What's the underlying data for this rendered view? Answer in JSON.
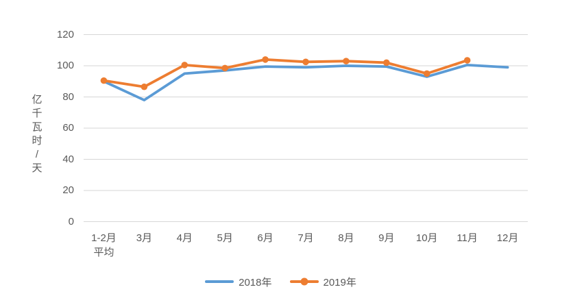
{
  "chart_data": {
    "type": "line",
    "title": "",
    "xlabel": "",
    "ylabel": "亿千瓦时/天",
    "categories": [
      "1-2月\n平均",
      "3月",
      "4月",
      "5月",
      "6月",
      "7月",
      "8月",
      "9月",
      "10月",
      "11月",
      "12月"
    ],
    "ylim": [
      0,
      120
    ],
    "ytick_step": 20,
    "grid": true,
    "legend_position": "bottom",
    "series": [
      {
        "name": "2018年",
        "color": "#5B9BD5",
        "marker": "none",
        "values": [
          90,
          78,
          95,
          97,
          99.5,
          99,
          100,
          99.5,
          93,
          100.5,
          99
        ]
      },
      {
        "name": "2019年",
        "color": "#ED7D31",
        "marker": "circle",
        "values": [
          90.5,
          86.5,
          100.5,
          98.5,
          104,
          102.5,
          103,
          102,
          95,
          103.5,
          null
        ]
      }
    ],
    "gridline_color": "#D6D6D6",
    "axis_text_color": "#595959",
    "background": "#FFFFFF"
  }
}
